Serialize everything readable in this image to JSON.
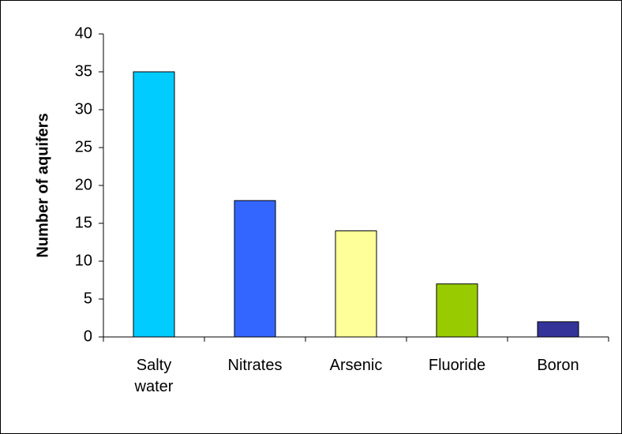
{
  "chart_data": {
    "type": "bar",
    "y_label": "Number of aquifers",
    "categories": [
      "Salty water",
      "Nitrates",
      "Arsenic",
      "Fluoride",
      "Boron"
    ],
    "values": [
      35,
      18,
      14,
      7,
      2
    ],
    "colors": [
      "#00ccff",
      "#3366ff",
      "#ffff99",
      "#99cc00",
      "#333399"
    ],
    "ylim": [
      0,
      40
    ],
    "yticks": [
      0,
      5,
      10,
      15,
      20,
      25,
      30,
      35,
      40
    ],
    "grid": false
  }
}
